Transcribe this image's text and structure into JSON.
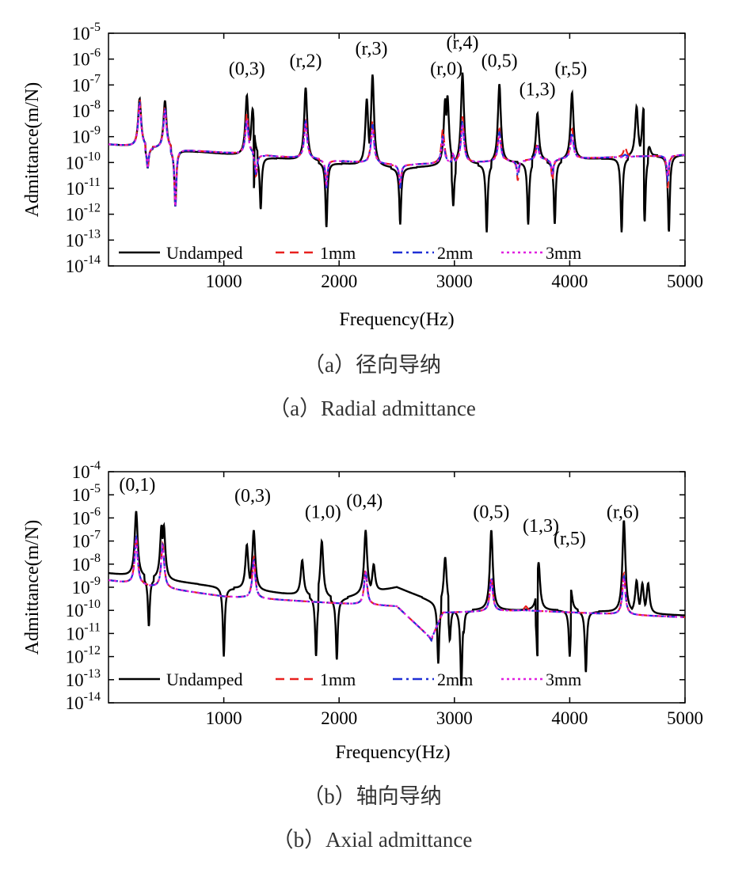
{
  "legend": [
    "Undamped",
    "1mm",
    "2mm",
    "3mm"
  ],
  "colors": {
    "undamped": "#000000",
    "1mm": "#e8201e",
    "2mm": "#1f2fd6",
    "3mm": "#e01fe0"
  },
  "captions": [
    {
      "cn": "（a）径向导纳",
      "en": "（a）Radial admittance"
    },
    {
      "cn": "（b）轴向导纳",
      "en": "（b）Axial admittance"
    }
  ],
  "chart_data": [
    {
      "type": "line",
      "xlabel": "Frequency(Hz)",
      "ylabel": "Admittance(m/N)",
      "x_ticks": [
        "1000",
        "2000",
        "3000",
        "4000",
        "5000"
      ],
      "y_ticks": [
        "-14",
        "-13",
        "-12",
        "-11",
        "-10",
        "-9",
        "-8",
        "-7",
        "-6",
        "-5"
      ],
      "y_tick_base": "10",
      "xlim": [
        0,
        5000
      ],
      "ylim_log10": [
        -14,
        -5
      ],
      "annotations": [
        {
          "text": "(0,3)",
          "x": 1200,
          "y": 2.5e-07
        },
        {
          "text": "(r,2)",
          "x": 1710,
          "y": 5e-07
        },
        {
          "text": "(r,3)",
          "x": 2280,
          "y": 1.5e-06
        },
        {
          "text": "(r,0)",
          "x": 2930,
          "y": 2.5e-07
        },
        {
          "text": "(r,4)",
          "x": 3070,
          "y": 2.5e-06
        },
        {
          "text": "(0,5)",
          "x": 3390,
          "y": 5e-07
        },
        {
          "text": "(1,3)",
          "x": 3720,
          "y": 4e-08
        },
        {
          "text": "(r,5)",
          "x": 4010,
          "y": 2.5e-07
        }
      ],
      "series": [
        {
          "name": "Undamped",
          "baseline": [
            [
              0,
              5e-10
            ],
            [
              2500,
              6e-11
            ],
            [
              5000,
              2e-10
            ]
          ],
          "peaks": [
            [
              270,
              3e-08
            ],
            [
              490,
              2.5e-08
            ],
            [
              1200,
              4e-08
            ],
            [
              1250,
              1.2e-08
            ],
            [
              1710,
              8e-08
            ],
            [
              1880,
              4e-10
            ],
            [
              2240,
              3e-08
            ],
            [
              2290,
              2.5e-07
            ],
            [
              2920,
              3e-08
            ],
            [
              2940,
              4e-08
            ],
            [
              3070,
              3e-07
            ],
            [
              3390,
              1.1e-07
            ],
            [
              3720,
              8e-09
            ],
            [
              4020,
              5e-08
            ],
            [
              4580,
              1.5e-08
            ],
            [
              4640,
              1.2e-08
            ],
            [
              4690,
              4e-10
            ]
          ],
          "dips": [
            [
              340,
              6e-11
            ],
            [
              580,
              2e-12
            ],
            [
              1260,
              1e-11
            ],
            [
              1320,
              1.5e-12
            ],
            [
              1890,
              3e-13
            ],
            [
              2250,
              1e-11
            ],
            [
              2530,
              4e-13
            ],
            [
              2990,
              2e-12
            ],
            [
              3280,
              2e-13
            ],
            [
              3640,
              4e-13
            ],
            [
              3870,
              4e-13
            ],
            [
              4450,
              2e-13
            ],
            [
              4650,
              5e-13
            ],
            [
              4860,
              2e-13
            ]
          ]
        },
        {
          "name": "1mm",
          "baseline": [
            [
              0,
              5e-10
            ],
            [
              2500,
              8e-11
            ],
            [
              5000,
              2e-10
            ]
          ],
          "peaks": [
            [
              270,
              3e-08
            ],
            [
              490,
              1.5e-08
            ],
            [
              1200,
              8e-09
            ],
            [
              1710,
              5e-09
            ],
            [
              2290,
              4e-09
            ],
            [
              2900,
              2e-09
            ],
            [
              3070,
              6e-09
            ],
            [
              3390,
              2e-09
            ],
            [
              3720,
              6e-10
            ],
            [
              4020,
              2e-09
            ],
            [
              4480,
              4e-10
            ]
          ],
          "dips": [
            [
              340,
              6e-11
            ],
            [
              580,
              2e-12
            ],
            [
              1280,
              3e-11
            ],
            [
              1890,
              1e-11
            ],
            [
              2530,
              1e-11
            ],
            [
              2990,
              2e-10
            ],
            [
              3550,
              2e-11
            ],
            [
              3850,
              2e-11
            ],
            [
              4850,
              1e-11
            ]
          ]
        },
        {
          "name": "2mm",
          "baseline": [
            [
              0,
              5e-10
            ],
            [
              2500,
              8e-11
            ],
            [
              5000,
              2e-10
            ]
          ],
          "peaks": [
            [
              270,
              2e-08
            ],
            [
              490,
              1.2e-08
            ],
            [
              1200,
              5e-09
            ],
            [
              1710,
              4e-09
            ],
            [
              2290,
              3e-09
            ],
            [
              2900,
              1e-09
            ],
            [
              3070,
              4e-09
            ],
            [
              3390,
              1.5e-09
            ],
            [
              3720,
              5e-10
            ],
            [
              4020,
              1.5e-09
            ],
            [
              4480,
              2e-10
            ]
          ],
          "dips": [
            [
              340,
              6e-11
            ],
            [
              580,
              2e-12
            ],
            [
              1280,
              3e-11
            ],
            [
              1890,
              1e-11
            ],
            [
              2530,
              1e-11
            ],
            [
              2990,
              2e-10
            ],
            [
              3550,
              3e-11
            ],
            [
              3850,
              3e-11
            ],
            [
              4850,
              2e-11
            ]
          ]
        },
        {
          "name": "3mm",
          "baseline": [
            [
              0,
              5e-10
            ],
            [
              2500,
              8e-11
            ],
            [
              5000,
              2e-10
            ]
          ],
          "peaks": [
            [
              270,
              1.5e-08
            ],
            [
              490,
              1e-08
            ],
            [
              1200,
              4e-09
            ],
            [
              1710,
              3e-09
            ],
            [
              2290,
              2e-09
            ],
            [
              2900,
              8e-10
            ],
            [
              3070,
              3e-09
            ],
            [
              3390,
              1e-09
            ],
            [
              3720,
              4e-10
            ],
            [
              4020,
              1e-09
            ],
            [
              4480,
              1.5e-10
            ]
          ],
          "dips": [
            [
              340,
              6e-11
            ],
            [
              580,
              2e-12
            ],
            [
              1280,
              4e-11
            ],
            [
              1890,
              1.5e-11
            ],
            [
              2530,
              1.5e-11
            ],
            [
              2990,
              2.5e-10
            ],
            [
              3550,
              4e-11
            ],
            [
              3850,
              4e-11
            ],
            [
              4850,
              3e-11
            ]
          ]
        }
      ]
    },
    {
      "type": "line",
      "xlabel": "Frequency(Hz)",
      "ylabel": "Admittance(m/N)",
      "x_ticks": [
        "1000",
        "2000",
        "3000",
        "4000",
        "5000"
      ],
      "y_ticks": [
        "-14",
        "-13",
        "-12",
        "-11",
        "-10",
        "-9",
        "-8",
        "-7",
        "-6",
        "-5",
        "-4"
      ],
      "y_tick_base": "10",
      "xlim": [
        0,
        5000
      ],
      "ylim_log10": [
        -14,
        -4
      ],
      "annotations": [
        {
          "text": "(0,1)",
          "x": 250,
          "y": 1.5e-05
        },
        {
          "text": "(0,3)",
          "x": 1250,
          "y": 5e-06
        },
        {
          "text": "(1,0)",
          "x": 1860,
          "y": 1e-06
        },
        {
          "text": "(0,4)",
          "x": 2220,
          "y": 3e-06
        },
        {
          "text": "(0,5)",
          "x": 3320,
          "y": 1e-06
        },
        {
          "text": "(1,3)",
          "x": 3750,
          "y": 2.5e-07
        },
        {
          "text": "(r,5)",
          "x": 4000,
          "y": 7e-08
        },
        {
          "text": "(r,6)",
          "x": 4460,
          "y": 1e-06
        }
      ],
      "series": [
        {
          "name": "Undamped",
          "baseline": [
            [
              0,
              4e-09
            ],
            [
              1000,
              1e-09
            ],
            [
              2000,
              3e-10
            ],
            [
              2500,
              1e-09
            ],
            [
              3000,
              1e-10
            ],
            [
              4000,
              1e-10
            ],
            [
              5000,
              6e-11
            ]
          ],
          "peaks": [
            [
              240,
              2e-06
            ],
            [
              460,
              5e-07
            ],
            [
              480,
              5e-07
            ],
            [
              1200,
              7e-08
            ],
            [
              1260,
              3e-07
            ],
            [
              1680,
              1.5e-08
            ],
            [
              1850,
              1e-07
            ],
            [
              2230,
              3e-07
            ],
            [
              2300,
              1e-08
            ],
            [
              2920,
              2e-08
            ],
            [
              3320,
              3e-07
            ],
            [
              3730,
              1.2e-08
            ],
            [
              4010,
              8e-10
            ],
            [
              4470,
              8e-07
            ],
            [
              4580,
              2e-09
            ],
            [
              4630,
              1.5e-09
            ],
            [
              4680,
              1.5e-09
            ]
          ],
          "dips": [
            [
              350,
              2e-11
            ],
            [
              1000,
              1e-12
            ],
            [
              1240,
              1e-10
            ],
            [
              1670,
              1e-10
            ],
            [
              1800,
              1e-12
            ],
            [
              1980,
              7e-13
            ],
            [
              2860,
              5e-13
            ],
            [
              2960,
              5e-12
            ],
            [
              3060,
              5e-14
            ],
            [
              3080,
              1e-11
            ],
            [
              3720,
              1e-12
            ],
            [
              4000,
              1e-12
            ],
            [
              4140,
              2e-13
            ],
            [
              4580,
              5e-11
            ],
            [
              4630,
              5e-11
            ]
          ]
        },
        {
          "name": "1mm",
          "baseline": [
            [
              0,
              2e-09
            ],
            [
              1000,
              4e-10
            ],
            [
              2000,
              2e-10
            ],
            [
              2500,
              1.5e-10
            ],
            [
              2800,
              6e-12
            ],
            [
              2900,
              8e-11
            ],
            [
              3600,
              1e-10
            ],
            [
              5000,
              5e-11
            ]
          ],
          "peaks": [
            [
              240,
              2e-07
            ],
            [
              470,
              8e-08
            ],
            [
              1260,
              2e-08
            ],
            [
              2230,
              6e-09
            ],
            [
              3320,
              3e-09
            ],
            [
              4470,
              4e-09
            ],
            [
              3620,
              1.5e-10
            ]
          ],
          "dips": [
            [
              2800,
              5e-12
            ],
            [
              2860,
              3e-11
            ]
          ]
        },
        {
          "name": "2mm",
          "baseline": [
            [
              0,
              2e-09
            ],
            [
              1000,
              4e-10
            ],
            [
              2000,
              2e-10
            ],
            [
              2500,
              1.5e-10
            ],
            [
              2800,
              6e-12
            ],
            [
              2900,
              8e-11
            ],
            [
              3600,
              1e-10
            ],
            [
              5000,
              5e-11
            ]
          ],
          "peaks": [
            [
              240,
              1.5e-07
            ],
            [
              470,
              7e-08
            ],
            [
              1260,
              1.5e-08
            ],
            [
              2230,
              5e-09
            ],
            [
              3320,
              2.5e-09
            ],
            [
              4470,
              3e-09
            ]
          ],
          "dips": [
            [
              2800,
              5e-12
            ]
          ]
        },
        {
          "name": "3mm",
          "baseline": [
            [
              0,
              2e-09
            ],
            [
              1000,
              4e-10
            ],
            [
              2000,
              2e-10
            ],
            [
              2500,
              1.5e-10
            ],
            [
              2800,
              6e-12
            ],
            [
              2900,
              8e-11
            ],
            [
              3600,
              1e-10
            ],
            [
              5000,
              5e-11
            ]
          ],
          "peaks": [
            [
              240,
              1e-07
            ],
            [
              470,
              6e-08
            ],
            [
              1260,
              1.2e-08
            ],
            [
              2230,
              4e-09
            ],
            [
              3320,
              2e-09
            ],
            [
              4470,
              2.5e-09
            ]
          ],
          "dips": [
            [
              2800,
              6e-12
            ]
          ]
        }
      ]
    }
  ]
}
